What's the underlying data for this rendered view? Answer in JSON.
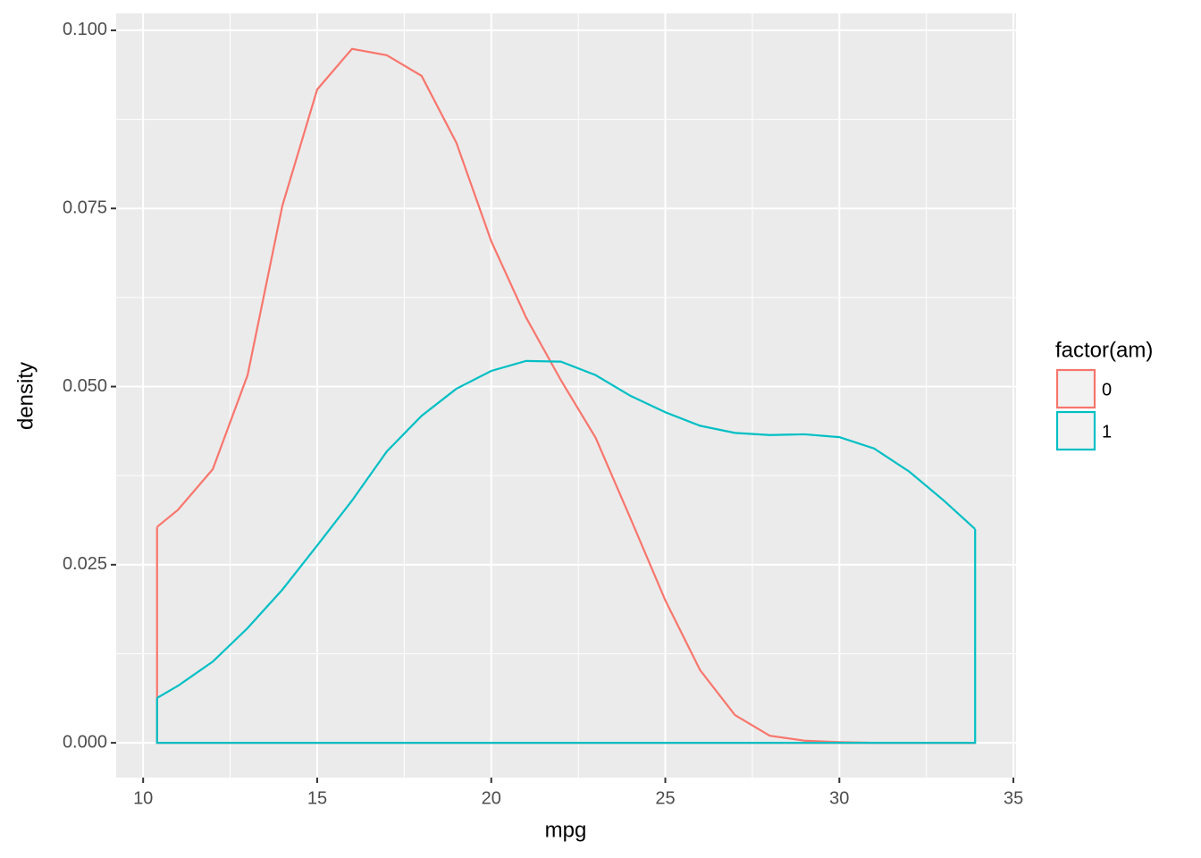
{
  "chart_data": {
    "type": "density",
    "x_label": "mpg",
    "y_label": "density",
    "legend_title": "factor(am)",
    "x": [
      10.4,
      11,
      12,
      13,
      14,
      15,
      16,
      17,
      18,
      19,
      20,
      21,
      22,
      23,
      24,
      25,
      26,
      27,
      28,
      29,
      30,
      31,
      32,
      33,
      33.9
    ],
    "series": [
      {
        "name": "0",
        "color": "#F8766D",
        "values": [
          0.0303,
          0.0327,
          0.0384,
          0.0516,
          0.0754,
          0.0917,
          0.0974,
          0.0965,
          0.0936,
          0.0842,
          0.0704,
          0.0597,
          0.0509,
          0.0428,
          0.0315,
          0.02,
          0.0102,
          0.0039,
          0.001,
          0.0003,
          0.0001,
          0,
          0,
          0,
          0
        ]
      },
      {
        "name": "1",
        "color": "#00BFC4",
        "values": [
          0.0063,
          0.008,
          0.0114,
          0.0161,
          0.0215,
          0.0277,
          0.034,
          0.0409,
          0.0459,
          0.0497,
          0.0522,
          0.0536,
          0.0535,
          0.0516,
          0.0487,
          0.0464,
          0.0445,
          0.0435,
          0.0432,
          0.0433,
          0.0429,
          0.0413,
          0.0381,
          0.034,
          0.03
        ]
      }
    ],
    "xlim": [
      9.225,
      35.075
    ],
    "ylim": [
      -0.004875,
      0.102375
    ],
    "xticks": [
      10,
      15,
      20,
      25,
      30,
      35
    ],
    "yticks": [
      {
        "value": 0,
        "label": "0.000"
      },
      {
        "value": 0.025,
        "label": "0.025"
      },
      {
        "value": 0.05,
        "label": "0.050"
      },
      {
        "value": 0.075,
        "label": "0.075"
      },
      {
        "value": 0.1,
        "label": "0.100"
      }
    ],
    "grid": true
  }
}
